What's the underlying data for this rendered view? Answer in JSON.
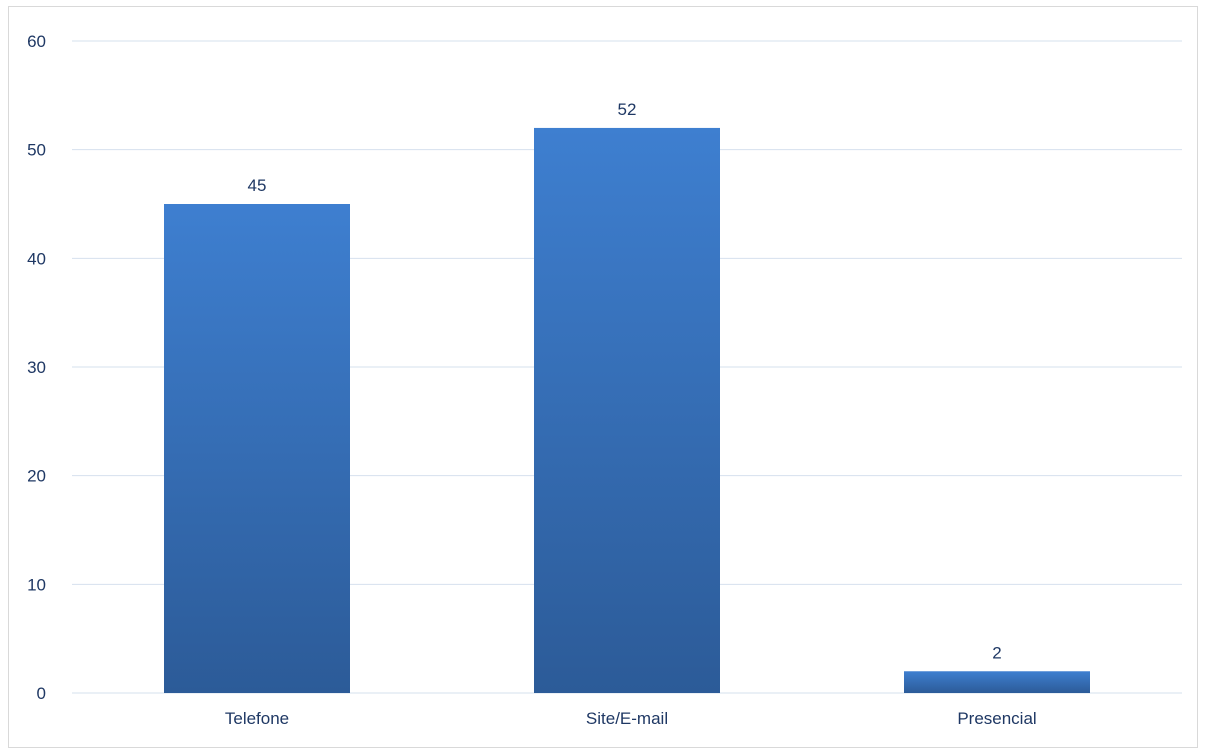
{
  "chart_data": {
    "type": "bar",
    "categories": [
      "Telefone",
      "Site/E-mail",
      "Presencial"
    ],
    "values": [
      45,
      52,
      2
    ],
    "ylim": [
      0,
      60
    ],
    "yticks": [
      0,
      10,
      20,
      30,
      40,
      50,
      60
    ],
    "grid": true,
    "data_labels": true,
    "colors": {
      "bar_top": "#3e7fd0",
      "bar_bottom": "#2c5b98",
      "grid": "#d6e0ee",
      "text": "#1f3864"
    }
  }
}
